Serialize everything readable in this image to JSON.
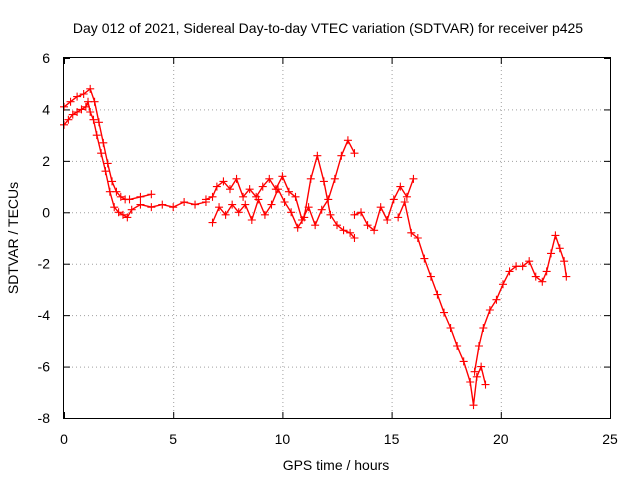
{
  "chart_data": {
    "type": "scatter",
    "title": "Day 012 of 2021, Sidereal Day-to-day VTEC variation (SDTVAR) for receiver p425",
    "xlabel": "GPS time / hours",
    "ylabel": "SDTVAR / TECUs",
    "xlim": [
      0,
      25
    ],
    "ylim": [
      -8,
      6
    ],
    "xticks": [
      0,
      5,
      10,
      15,
      20,
      25
    ],
    "yticks": [
      -8,
      -6,
      -4,
      -2,
      0,
      2,
      4,
      6
    ],
    "xtick_labels": [
      "0",
      "5",
      "10",
      "15",
      "20",
      "25"
    ],
    "ytick_labels": [
      "-8",
      "-6",
      "-4",
      "-2",
      "0",
      "2",
      "4",
      "6"
    ],
    "grid": true,
    "marker": "+",
    "series": [
      {
        "name": "main",
        "color": "#ff0000",
        "x": [
          0.0,
          0.2,
          0.4,
          0.6,
          0.8,
          1.0,
          1.1,
          1.2,
          1.35,
          1.5,
          1.7,
          1.9,
          2.1,
          2.3,
          2.5,
          2.7,
          2.9,
          3.1,
          3.5,
          4.0,
          4.5,
          5.0,
          5.5,
          6.0,
          6.5
        ],
        "y": [
          3.4,
          3.6,
          3.8,
          3.9,
          4.0,
          4.1,
          4.3,
          3.9,
          3.6,
          3.0,
          2.3,
          1.6,
          0.8,
          0.2,
          0.0,
          -0.1,
          -0.2,
          0.1,
          0.3,
          0.2,
          0.3,
          0.2,
          0.4,
          0.3,
          0.4
        ]
      },
      {
        "name": "upper",
        "color": "#ff0000",
        "x": [
          0.0,
          0.3,
          0.6,
          0.9,
          1.2,
          1.4,
          1.6,
          1.8,
          2.0,
          2.2,
          2.4,
          2.6,
          2.8,
          3.0,
          3.5,
          4.0
        ],
        "y": [
          4.1,
          4.3,
          4.5,
          4.6,
          4.8,
          4.3,
          3.5,
          2.7,
          1.9,
          1.2,
          0.8,
          0.6,
          0.5,
          0.5,
          0.6,
          0.7
        ]
      },
      {
        "name": "s-15-19",
        "color": "#ff0000",
        "x": [
          15.3,
          15.6,
          15.9,
          16.2,
          16.5,
          16.8,
          17.1,
          17.4,
          17.7,
          18.0,
          18.3,
          18.6,
          18.75,
          18.9,
          19.1,
          19.3
        ],
        "y": [
          -0.2,
          0.4,
          -0.8,
          -1.0,
          -1.8,
          -2.5,
          -3.2,
          -3.9,
          -4.5,
          -5.2,
          -5.8,
          -6.6,
          -7.5,
          -6.4,
          -6.0,
          -6.7
        ]
      },
      {
        "name": "s-19-23",
        "color": "#ff0000",
        "x": [
          18.8,
          19.0,
          19.2,
          19.5,
          19.8,
          20.1,
          20.4,
          20.7,
          21.0,
          21.3,
          21.6,
          21.9,
          22.1,
          22.3,
          22.5,
          22.7,
          22.9,
          23.0
        ],
        "y": [
          -6.2,
          -5.2,
          -4.5,
          -3.8,
          -3.4,
          -2.8,
          -2.3,
          -2.1,
          -2.1,
          -1.9,
          -2.5,
          -2.7,
          -2.3,
          -1.6,
          -0.9,
          -1.4,
          -1.9,
          -2.5
        ]
      },
      {
        "name": "dense-a",
        "color": "#ff0000",
        "x": [
          6.5,
          6.8,
          7.0,
          7.3,
          7.6,
          7.9,
          8.2,
          8.5,
          8.8,
          9.1,
          9.4,
          9.7,
          10.0,
          10.3,
          10.6,
          10.9,
          11.2,
          11.5,
          11.8,
          12.1,
          12.4,
          12.7,
          13.0,
          13.3
        ],
        "y": [
          0.5,
          0.6,
          1.0,
          1.2,
          0.9,
          1.3,
          0.6,
          0.9,
          0.6,
          1.0,
          1.3,
          0.9,
          1.4,
          0.8,
          0.6,
          -0.3,
          0.2,
          -0.5,
          0.1,
          0.5,
          1.3,
          2.2,
          2.8,
          2.3
        ]
      },
      {
        "name": "dense-b",
        "color": "#ff0000",
        "x": [
          6.8,
          7.1,
          7.4,
          7.7,
          8.0,
          8.3,
          8.6,
          8.9,
          9.2,
          9.5,
          9.8,
          10.1,
          10.4,
          10.7,
          11.0,
          11.3,
          11.6,
          11.9,
          12.2,
          12.5,
          12.8,
          13.1,
          13.3
        ],
        "y": [
          -0.4,
          0.2,
          -0.1,
          0.3,
          0.0,
          0.3,
          -0.3,
          0.5,
          -0.1,
          0.3,
          0.9,
          0.4,
          0.0,
          -0.6,
          -0.2,
          1.3,
          2.2,
          1.2,
          -0.1,
          -0.5,
          -0.7,
          -0.8,
          -1.0
        ]
      },
      {
        "name": "dense-c",
        "color": "#ff0000",
        "x": [
          13.3,
          13.6,
          13.9,
          14.2,
          14.5,
          14.8,
          15.1,
          15.4,
          15.7,
          16.0
        ],
        "y": [
          -0.1,
          0.0,
          -0.5,
          -0.7,
          0.2,
          -0.3,
          0.5,
          1.0,
          0.6,
          1.3
        ]
      }
    ]
  }
}
